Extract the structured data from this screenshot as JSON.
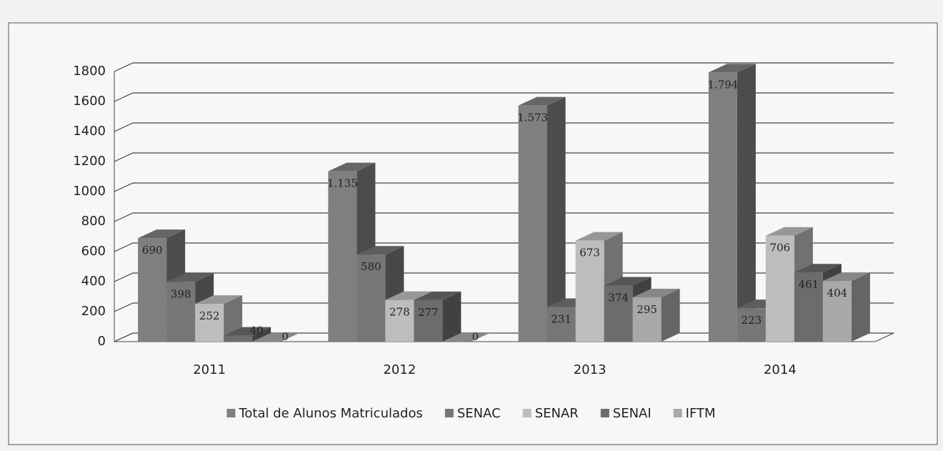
{
  "chart_data": {
    "type": "bar3d",
    "categories": [
      "2011",
      "2012",
      "2013",
      "2014"
    ],
    "series": [
      {
        "name": "Total de Alunos Matriculados",
        "color": "#7f7f7f",
        "values": [
          690,
          1135,
          1573,
          1794
        ],
        "value_labels": [
          "690",
          "1.135",
          "1.573",
          "1.794"
        ]
      },
      {
        "name": "SENAC",
        "color": "#767676",
        "values": [
          398,
          580,
          231,
          223
        ]
      },
      {
        "name": "SENAR",
        "color": "#bdbdbd",
        "values": [
          252,
          278,
          673,
          706
        ]
      },
      {
        "name": "SENAI",
        "color": "#6c6c6c",
        "values": [
          40,
          277,
          374,
          461
        ]
      },
      {
        "name": "IFTM",
        "color": "#a9a9a9",
        "values": [
          0,
          0,
          295,
          404
        ]
      }
    ],
    "ylim": [
      0,
      1800
    ],
    "yticks": [
      0,
      200,
      400,
      600,
      800,
      1000,
      1200,
      1400,
      1600,
      1800
    ],
    "grid": true
  }
}
